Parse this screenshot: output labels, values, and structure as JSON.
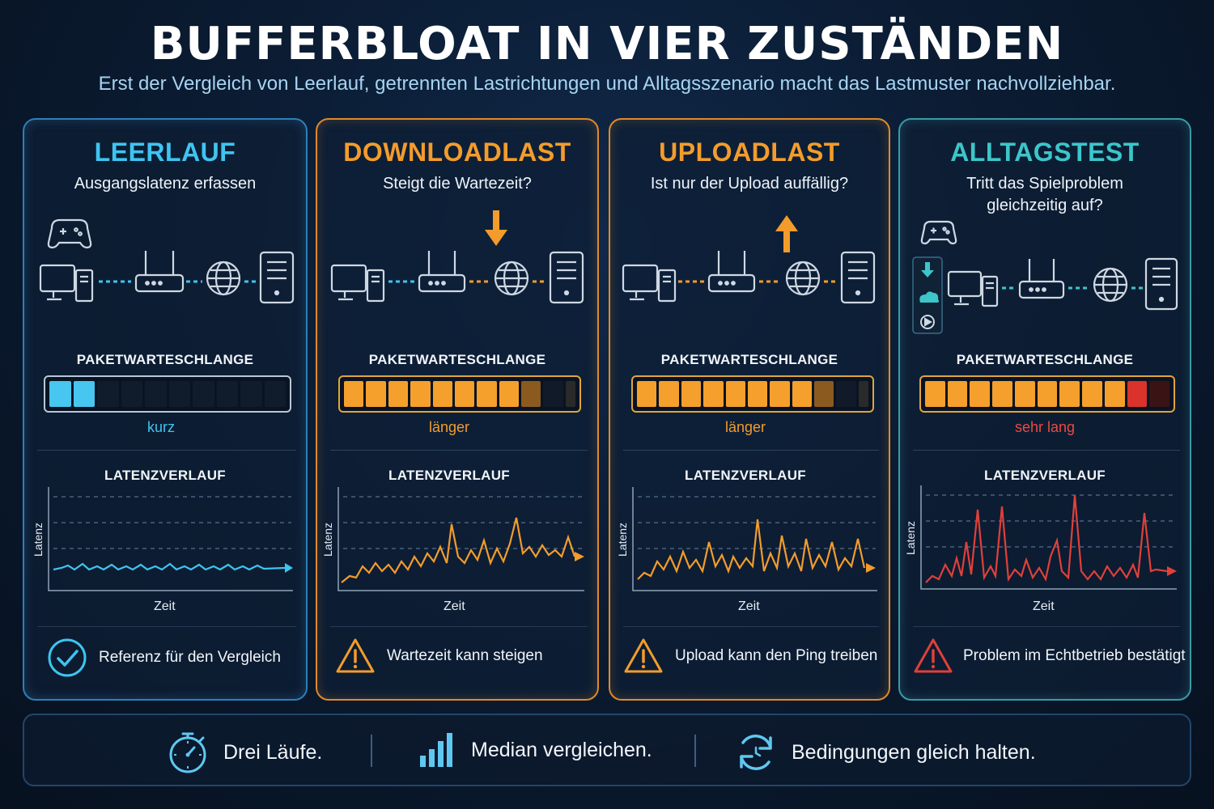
{
  "header": {
    "title": "BUFFERBLOAT IN VIER ZUSTÄNDEN",
    "subtitle": "Erst der Vergleich von Leerlauf, getrennten Lastrichtungen und Alltagsszenario macht das Lastmuster nachvollziehbar."
  },
  "colors": {
    "blue": "#3fc4f0",
    "orange": "#f39c2c",
    "teal": "#3cc6c9",
    "red": "#e0403a"
  },
  "panels": [
    {
      "title": "LEERLAUF",
      "subtitle": "Ausgangslatenz erfassen",
      "queue_label": "PAKETWARTESCHLANGE",
      "queue_state": "kurz",
      "queue_fill": 2,
      "queue_total": 10,
      "latency_label": "LATENZVERLAUF",
      "y_axis": "Latenz",
      "x_axis": "Zeit",
      "footer": "Referenz für den Vergleich",
      "footer_icon": "check-circle-icon"
    },
    {
      "title": "DOWNLOADLAST",
      "subtitle": "Steigt die Wartezeit?",
      "queue_label": "PAKETWARTESCHLANGE",
      "queue_state": "länger",
      "queue_fill": 9,
      "queue_total": 11,
      "latency_label": "LATENZVERLAUF",
      "y_axis": "Latenz",
      "x_axis": "Zeit",
      "footer": "Wartezeit kann steigen",
      "footer_icon": "warning-icon"
    },
    {
      "title": "UPLOADLAST",
      "subtitle": "Ist nur der Upload auffällig?",
      "queue_label": "PAKETWARTESCHLANGE",
      "queue_state": "länger",
      "queue_fill": 9,
      "queue_total": 11,
      "latency_label": "LATENZVERLAUF",
      "y_axis": "Latenz",
      "x_axis": "Zeit",
      "footer": "Upload kann den Ping treiben",
      "footer_icon": "warning-icon"
    },
    {
      "title": "ALLTAGSTEST",
      "subtitle_line1": "Tritt das Spielproblem",
      "subtitle_line2": "gleichzeitig auf?",
      "queue_label": "PAKETWARTESCHLANGE",
      "queue_state": "sehr lang",
      "queue_fill": 11,
      "queue_total": 11,
      "latency_label": "LATENZVERLAUF",
      "y_axis": "Latenz",
      "x_axis": "Zeit",
      "footer": "Problem im Echtbetrieb bestätigt",
      "footer_icon": "warning-icon"
    }
  ],
  "bottom": {
    "item1": "Drei Läufe.",
    "item2": "Median vergleichen.",
    "item3": "Bedingungen gleich halten."
  }
}
